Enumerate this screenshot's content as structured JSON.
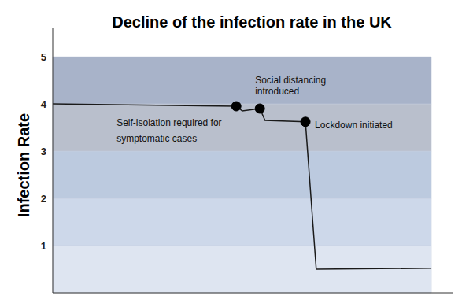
{
  "chart_data": {
    "type": "line",
    "title": "Decline of the infection rate in the UK",
    "y_label": "Infection Rate",
    "x": [
      0,
      45.9,
      47.4,
      51.8,
      53.1,
      63.2,
      65.9,
      94.7
    ],
    "values": [
      4.0,
      3.95,
      3.85,
      3.9,
      3.65,
      3.62,
      0.5,
      0.52
    ],
    "color": "#1a1a1a",
    "xlim": [
      0,
      100
    ],
    "ylim": [
      0,
      5.6
    ],
    "yticks": [
      1,
      2,
      3,
      4,
      5
    ],
    "tick_labels": "y",
    "annotations": [
      {
        "x": 45.9,
        "y": 3.95,
        "text": [
          "Self-isolation required for",
          "symptomatic cases"
        ]
      },
      {
        "x": 51.8,
        "y": 3.9,
        "text": [
          "Social distancing",
          "introduced"
        ]
      },
      {
        "x": 63.2,
        "y": 3.62,
        "text": [
          "Lockdown initiated"
        ]
      }
    ]
  }
}
